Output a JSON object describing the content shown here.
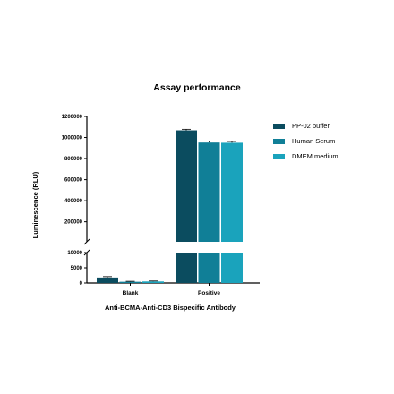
{
  "chart_data": {
    "type": "bar",
    "title": "Assay performance",
    "xlabel": "Anti-BCMA-Anti-CD3 Bispecific Antibody",
    "ylabel": "Luminescence (RLU)",
    "categories": [
      "Blank",
      "Positive"
    ],
    "series": [
      {
        "name": "PP-02 buffer",
        "color": "#0b4c5f",
        "values": [
          1800,
          1068000
        ],
        "errors": [
          300,
          10000
        ]
      },
      {
        "name": "Human Serum",
        "color": "#107f97",
        "values": [
          400,
          952000
        ],
        "errors": [
          150,
          14000
        ]
      },
      {
        "name": "DMEM medium",
        "color": "#1aa3bc",
        "values": [
          500,
          950000
        ],
        "errors": [
          150,
          12000
        ]
      }
    ],
    "axis_break": true,
    "lower_segment": {
      "ylim": [
        0,
        10000
      ],
      "ticks": [
        0,
        5000,
        10000
      ],
      "tick_labels": [
        "0",
        "5000",
        "10000"
      ]
    },
    "upper_segment": {
      "ylim": [
        10000,
        1200000
      ],
      "ticks": [
        200000,
        400000,
        600000,
        800000,
        1000000,
        1200000
      ],
      "tick_labels": [
        "200000",
        "400000",
        "600000",
        "800000",
        "1000000",
        "1200000"
      ]
    },
    "grid": false,
    "legend_position": "top-right"
  }
}
